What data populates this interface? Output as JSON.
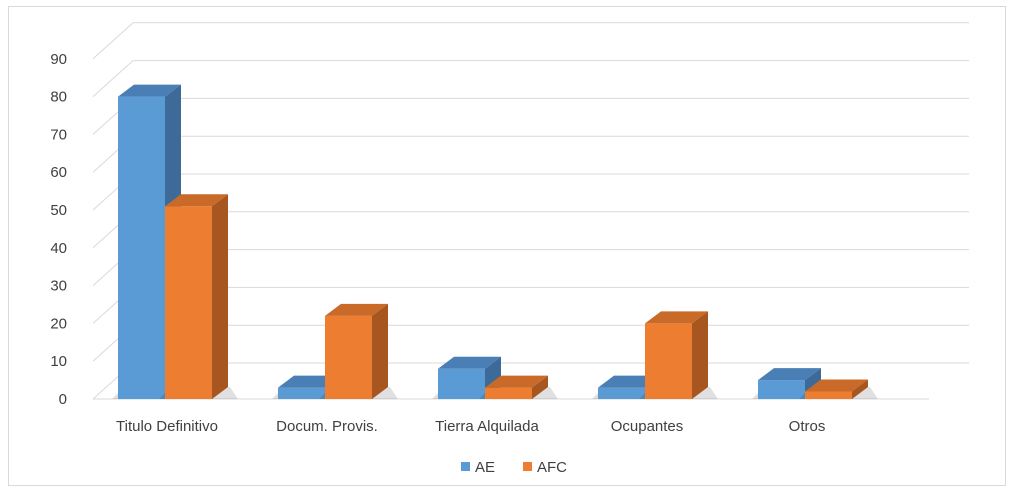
{
  "chart_data": {
    "type": "bar",
    "categories": [
      "Titulo Definitivo",
      "Docum. Provis.",
      "Tierra Alquilada",
      "Ocupantes",
      "Otros"
    ],
    "series": [
      {
        "name": "AE",
        "values": [
          80,
          3,
          8,
          3,
          5
        ]
      },
      {
        "name": "AFC",
        "values": [
          51,
          22,
          3,
          20,
          2
        ]
      }
    ],
    "ylim": [
      0,
      90
    ],
    "yticks": [
      0,
      10,
      20,
      30,
      40,
      50,
      60,
      70,
      80,
      90
    ],
    "grid": true,
    "legend_position": "bottom",
    "colors": {
      "AE": {
        "front": "#5b9bd5",
        "top": "#4a7fb5",
        "side": "#3d6a99"
      },
      "AFC": {
        "front": "#ed7d31",
        "top": "#c96a29",
        "side": "#a8561f"
      }
    }
  }
}
